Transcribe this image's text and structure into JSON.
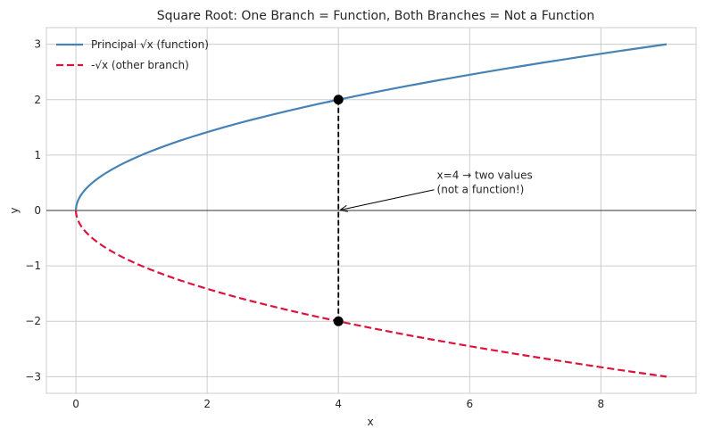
{
  "chart_data": {
    "type": "line",
    "title": "Square Root: One Branch = Function, Both Branches = Not a Function",
    "xlabel": "x",
    "ylabel": "y",
    "xlim": [
      -0.45,
      9.45
    ],
    "ylim": [
      -3.3,
      3.3
    ],
    "x_ticks": [
      0,
      2,
      4,
      6,
      8
    ],
    "y_ticks": [
      -3,
      -2,
      -1,
      0,
      1,
      2,
      3
    ],
    "x_tick_labels": [
      "0",
      "2",
      "4",
      "6",
      "8"
    ],
    "y_tick_labels": [
      "−3",
      "−2",
      "−1",
      "0",
      "1",
      "2",
      "3"
    ],
    "grid": true,
    "legend": "top-left",
    "series": [
      {
        "name": "Principal √x (function)",
        "function": "sqrt",
        "x_range": [
          0,
          9
        ],
        "style": "solid",
        "color": "#4682B4"
      },
      {
        "name": "-√x (other branch)",
        "function": "neg_sqrt",
        "x_range": [
          0,
          9
        ],
        "style": "dashed",
        "color": "#DC143C"
      }
    ],
    "reference_lines": [
      {
        "type": "horizontal",
        "y": 0,
        "color": "#000000"
      }
    ],
    "vertical_test": {
      "x": 4,
      "y_from": -2,
      "y_to": 2,
      "style": "dashed",
      "color": "#000000"
    },
    "points": [
      {
        "x": 4,
        "y": 2,
        "color": "#000000"
      },
      {
        "x": 4,
        "y": -2,
        "color": "#000000"
      }
    ],
    "annotation": {
      "lines": [
        "x=4 → two values",
        "(not a function!)"
      ],
      "text_at": [
        5.5,
        0.6
      ],
      "arrow_to": [
        4,
        0
      ]
    }
  }
}
